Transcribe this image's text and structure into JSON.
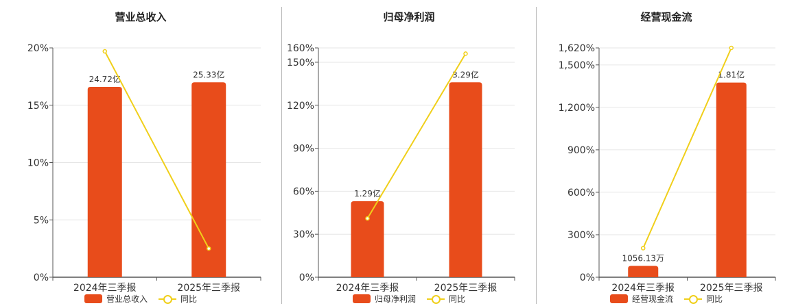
{
  "colors": {
    "bar": "#e84c1b",
    "line": "#f0cf1a",
    "grid": "#e6e6e6",
    "axis": "#555555"
  },
  "chart_data": [
    {
      "type": "bar",
      "title": "营业总收入",
      "categories": [
        "2024年三季报",
        "2025年三季报"
      ],
      "series": [
        {
          "name": "营业总收入",
          "type": "bar",
          "values": [
            16.6,
            17.0
          ],
          "labels": [
            "24.72亿",
            "25.33亿"
          ]
        },
        {
          "name": "同比",
          "type": "line",
          "values": [
            19.7,
            2.5
          ]
        }
      ],
      "ylim": [
        0,
        20
      ],
      "yticks": [
        0,
        5,
        10,
        15,
        20
      ],
      "ytick_labels": [
        "0%",
        "5%",
        "10%",
        "15%",
        "20%"
      ],
      "legend": "bottom-center",
      "grid": true
    },
    {
      "type": "bar",
      "title": "归母净利润",
      "categories": [
        "2024年三季报",
        "2025年三季报"
      ],
      "series": [
        {
          "name": "归母净利润",
          "type": "bar",
          "values": [
            53,
            136
          ],
          "labels": [
            "1.29亿",
            "3.29亿"
          ]
        },
        {
          "name": "同比",
          "type": "line",
          "values": [
            41,
            156
          ]
        }
      ],
      "ylim": [
        0,
        160
      ],
      "yticks": [
        0,
        30,
        60,
        90,
        120,
        150,
        160
      ],
      "ytick_labels": [
        "0%",
        "30%",
        "60%",
        "90%",
        "120%",
        "150%",
        "160%"
      ],
      "legend": "bottom-center",
      "grid": true
    },
    {
      "type": "bar",
      "title": "经营现金流",
      "categories": [
        "2024年三季报",
        "2025年三季报"
      ],
      "series": [
        {
          "name": "经营现金流",
          "type": "bar",
          "values": [
            80,
            1375
          ],
          "labels": [
            "1056.13万",
            "1.81亿"
          ]
        },
        {
          "name": "同比",
          "type": "line",
          "values": [
            205,
            1620
          ]
        }
      ],
      "ylim": [
        0,
        1620
      ],
      "yticks": [
        0,
        300,
        600,
        900,
        1200,
        1500,
        1620
      ],
      "ytick_labels": [
        "0%",
        "300%",
        "600%",
        "900%",
        "1,200%",
        "1,500%",
        "1,620%"
      ],
      "legend": "bottom-center",
      "grid": true
    }
  ]
}
